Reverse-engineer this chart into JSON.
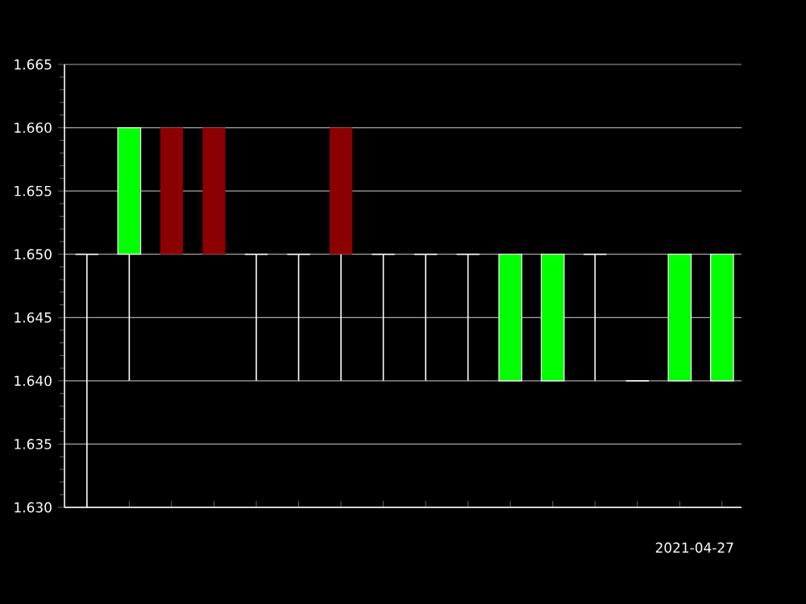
{
  "chart_data": {
    "type": "candlestick",
    "categories": [
      null,
      null,
      null,
      null,
      null,
      null,
      null,
      null,
      null,
      null,
      null,
      null,
      null,
      null,
      null,
      null
    ],
    "ohlc": [
      [
        1.65,
        1.65,
        1.63,
        1.65
      ],
      [
        1.65,
        1.66,
        1.64,
        1.66
      ],
      [
        1.66,
        1.66,
        1.65,
        1.65
      ],
      [
        1.66,
        1.66,
        1.65,
        1.65
      ],
      [
        1.65,
        1.65,
        1.64,
        1.65
      ],
      [
        1.65,
        1.65,
        1.64,
        1.65
      ],
      [
        1.66,
        1.66,
        1.64,
        1.65
      ],
      [
        1.65,
        1.65,
        1.64,
        1.65
      ],
      [
        1.65,
        1.65,
        1.64,
        1.65
      ],
      [
        1.65,
        1.65,
        1.64,
        1.65
      ],
      [
        1.64,
        1.65,
        1.64,
        1.65
      ],
      [
        1.64,
        1.65,
        1.64,
        1.65
      ],
      [
        1.65,
        1.65,
        1.64,
        1.65
      ],
      [
        1.64,
        1.64,
        1.64,
        1.64
      ],
      [
        1.64,
        1.65,
        1.64,
        1.65
      ],
      [
        1.64,
        1.65,
        1.64,
        1.65
      ]
    ],
    "colors": [
      "#ffffff",
      "#00ff00",
      "#8b0000",
      "#8b0000",
      "#ffffff",
      "#ffffff",
      "#8b0000",
      "#ffffff",
      "#ffffff",
      "#ffffff",
      "#00ff00",
      "#00ff00",
      "#ffffff",
      "#ffffff",
      "#00ff00",
      "#00ff00"
    ],
    "ylim": [
      1.63,
      1.665
    ],
    "yticks": [
      {
        "value": 1.63,
        "label": "1.630"
      },
      {
        "value": 1.635,
        "label": "1.635"
      },
      {
        "value": 1.64,
        "label": "1.640"
      },
      {
        "value": 1.645,
        "label": "1.645"
      },
      {
        "value": 1.65,
        "label": "1.650"
      },
      {
        "value": 1.655,
        "label": "1.655"
      },
      {
        "value": 1.66,
        "label": "1.660"
      },
      {
        "value": 1.665,
        "label": "1.665"
      }
    ],
    "grid": "y",
    "tick_labels": "y",
    "annotations": [
      "2021-04-27"
    ]
  }
}
